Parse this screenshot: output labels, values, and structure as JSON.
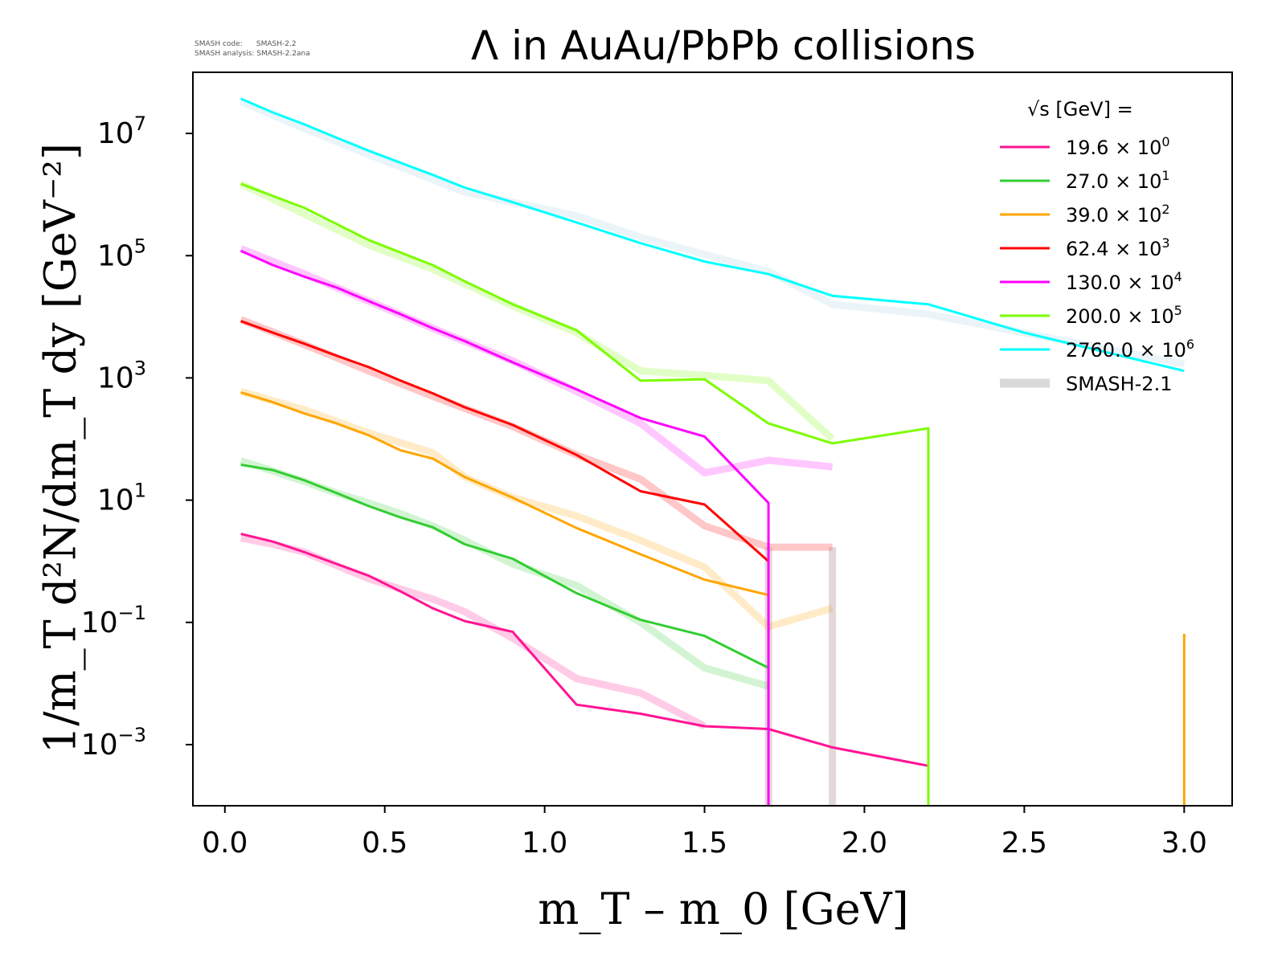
{
  "info": {
    "line1": "SMASH code:      SMASH-2.2",
    "line2": "SMASH analysis: SMASH-2.2ana"
  },
  "chart_data": {
    "type": "line",
    "title": "Λ in AuAu/PbPb collisions",
    "xlabel": "m_T – m_0 [GeV]",
    "ylabel": "1/m_T d²N/dm_T dy [GeV⁻²]",
    "xlim": [
      -0.1,
      3.15
    ],
    "ylim": [
      0.0001,
      100000000
    ],
    "yscale": "log",
    "grid": false,
    "legend_position": "top-right",
    "legend_title": "√s [GeV] =",
    "xticks": [
      "0.0",
      "0.5",
      "1.0",
      "1.5",
      "2.0",
      "2.5",
      "3.0"
    ],
    "yticks": [
      "10^-3",
      "10^-1",
      "10^1",
      "10^3",
      "10^5",
      "10^7"
    ],
    "series": [
      {
        "name": "19.6 × 10^0",
        "color": "#ff1493",
        "x": [
          0.05,
          0.15,
          0.25,
          0.35,
          0.45,
          0.55,
          0.65,
          0.75,
          0.9,
          1.1,
          1.3,
          1.5,
          1.7,
          1.9,
          2.2
        ],
        "y": [
          2.8,
          2.1,
          1.4,
          0.9,
          0.58,
          0.32,
          0.17,
          0.105,
          0.07,
          0.0045,
          0.0032,
          0.002,
          0.0018,
          0.0009,
          0.00045
        ]
      },
      {
        "name": "27.0 × 10^1",
        "color": "#32cd32",
        "x": [
          0.05,
          0.15,
          0.25,
          0.35,
          0.45,
          0.55,
          0.65,
          0.75,
          0.9,
          1.1,
          1.3,
          1.5,
          1.7
        ],
        "y": [
          38,
          31,
          21,
          13,
          8,
          5.2,
          3.6,
          1.9,
          1.1,
          0.3,
          0.11,
          0.06,
          0.018
        ]
      },
      {
        "name": "39.0 × 10^2",
        "color": "#ffa500",
        "x": [
          0.05,
          0.15,
          0.25,
          0.35,
          0.45,
          0.55,
          0.65,
          0.75,
          0.9,
          1.1,
          1.3,
          1.5,
          1.7
        ],
        "y": [
          580,
          400,
          260,
          180,
          115,
          65,
          48,
          24,
          11,
          3.5,
          1.3,
          0.5,
          0.28
        ]
      },
      {
        "name": "62.4 × 10^3",
        "color": "#ff0000",
        "x": [
          0.05,
          0.15,
          0.25,
          0.35,
          0.45,
          0.55,
          0.65,
          0.75,
          0.9,
          1.1,
          1.3,
          1.5,
          1.7
        ],
        "y": [
          8500,
          5500,
          3600,
          2300,
          1500,
          900,
          560,
          330,
          170,
          55,
          14,
          8.5,
          1
        ]
      },
      {
        "name": "130.0 × 10^4",
        "color": "#ff00ff",
        "x": [
          0.05,
          0.15,
          0.25,
          0.35,
          0.45,
          0.55,
          0.65,
          0.75,
          0.9,
          1.1,
          1.3,
          1.5,
          1.7,
          1.7
        ],
        "y": [
          120000,
          70000,
          45000,
          30000,
          18000,
          11000,
          6500,
          4000,
          1800,
          650,
          220,
          110,
          9,
          0.0001
        ]
      },
      {
        "name": "200.0 × 10^5",
        "color": "#7cfc00",
        "x": [
          0.05,
          0.25,
          0.45,
          0.65,
          0.75,
          0.9,
          1.1,
          1.3,
          1.5,
          1.7,
          1.9,
          2.2,
          2.2
        ],
        "y": [
          1500000,
          600000,
          180000,
          70000,
          38000,
          16000,
          6000,
          900,
          950,
          180,
          85,
          150,
          0.0001
        ]
      },
      {
        "name": "2760.0 × 10^6",
        "color": "#00ffff",
        "x": [
          0.05,
          0.15,
          0.25,
          0.35,
          0.45,
          0.55,
          0.65,
          0.75,
          0.9,
          1.1,
          1.3,
          1.5,
          1.7,
          1.9,
          2.2,
          2.5,
          3.0
        ],
        "y": [
          37000000,
          22000000,
          14000000,
          8500000,
          5200000,
          3300000,
          2100000,
          1300000,
          750000,
          350000,
          160000,
          80000,
          50000,
          22000,
          16000,
          5500,
          1300
        ]
      },
      {
        "name": "SMASH-2.1",
        "color": "#c8c8c8"
      }
    ],
    "reference_series": [
      {
        "color": "#ff1493",
        "x": [
          0.05,
          0.15,
          0.25,
          0.35,
          0.45,
          0.55,
          0.65,
          0.75,
          0.9,
          1.1,
          1.3,
          1.5
        ],
        "y": [
          2.4,
          1.9,
          1.4,
          0.85,
          0.52,
          0.35,
          0.24,
          0.15,
          0.055,
          0.012,
          0.007,
          0.002
        ]
      },
      {
        "color": "#32cd32",
        "x": [
          0.05,
          0.15,
          0.25,
          0.35,
          0.45,
          0.55,
          0.65,
          0.75,
          0.9,
          1.1,
          1.3,
          1.5,
          1.7
        ],
        "y": [
          44,
          30,
          20,
          13,
          9,
          6,
          3.8,
          2.2,
          0.9,
          0.4,
          0.1,
          0.018,
          0.009
        ]
      },
      {
        "color": "#ffa500",
        "x": [
          0.05,
          0.25,
          0.45,
          0.65,
          0.75,
          0.9,
          1.1,
          1.3,
          1.5,
          1.7,
          1.9
        ],
        "y": [
          600,
          300,
          125,
          60,
          24,
          11,
          5.5,
          2.2,
          0.8,
          0.085,
          0.17
        ]
      },
      {
        "color": "#ff0000",
        "x": [
          0.05,
          0.25,
          0.45,
          0.65,
          0.9,
          1.1,
          1.3,
          1.5,
          1.7,
          1.9
        ],
        "y": [
          9000,
          3500,
          1300,
          500,
          160,
          55,
          22,
          3.8,
          1.7,
          1.7
        ]
      },
      {
        "color": "#ff00ff",
        "x": [
          0.05,
          0.25,
          0.45,
          0.65,
          0.9,
          1.1,
          1.3,
          1.5,
          1.7,
          1.9
        ],
        "y": [
          130000,
          50000,
          18000,
          6500,
          1900,
          600,
          180,
          28,
          45,
          35
        ]
      },
      {
        "color": "#7cfc00",
        "x": [
          0.05,
          0.45,
          0.65,
          0.9,
          1.1,
          1.3,
          1.5,
          1.7,
          1.9
        ],
        "y": [
          1500000,
          150000,
          60000,
          15000,
          5500,
          1300,
          1100,
          900,
          100
        ]
      },
      {
        "color": "#a5cfe0",
        "x": [
          0.05,
          0.25,
          0.45,
          0.75,
          1.1,
          1.3,
          1.7,
          1.9,
          2.2,
          3.0
        ],
        "y": [
          33000000,
          12000000,
          4500000,
          1100000,
          450000,
          200000,
          55000,
          16000,
          11000,
          1700
        ]
      }
    ],
    "spikes": [
      {
        "color": "#ffa500",
        "x": 3.0,
        "y_top": 0.065
      }
    ]
  }
}
